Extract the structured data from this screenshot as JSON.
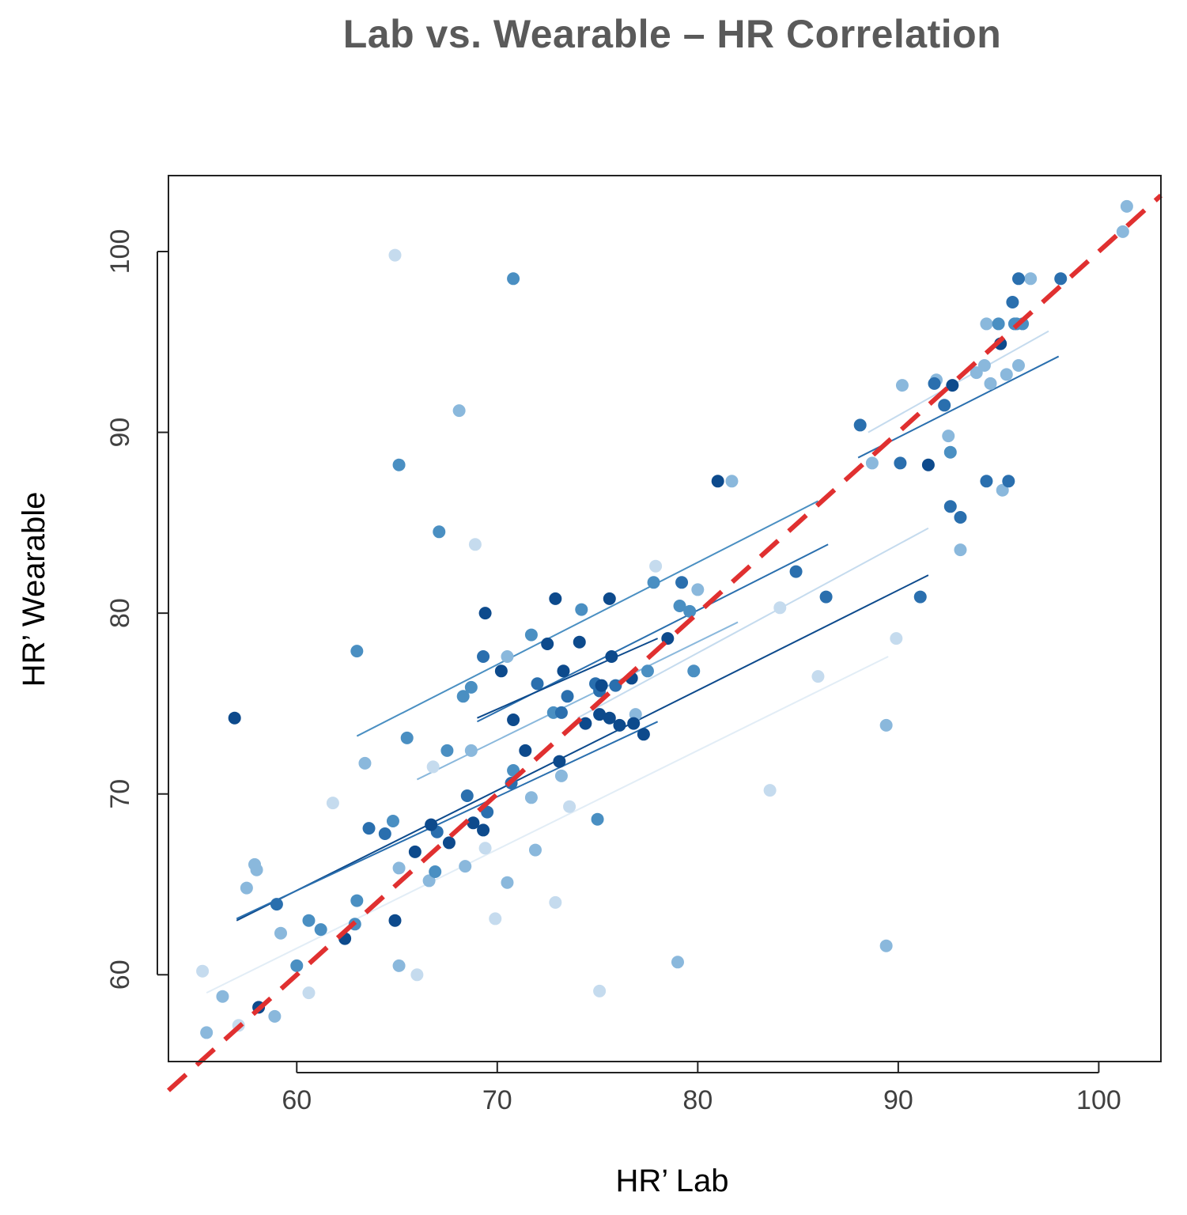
{
  "chart_data": {
    "type": "scatter",
    "title": "Lab vs. Wearable – HR Correlation",
    "xlabel": "HR’ Lab",
    "ylabel": "HR’ Wearable",
    "xlim": [
      53.6,
      103.1
    ],
    "ylim": [
      55.2,
      104.2
    ],
    "xticks": [
      60,
      70,
      80,
      90,
      100
    ],
    "yticks": [
      60,
      70,
      80,
      90,
      100
    ],
    "grid": false,
    "identity_line": {
      "name": "Identity (y = x)",
      "color": "#e03030",
      "style": "dashed",
      "x": [
        53.6,
        103.1
      ],
      "y": [
        53.6,
        103.1
      ]
    },
    "colors": {
      "c1": "#0d4a8c",
      "c2": "#2a6fae",
      "c3": "#4a8fc2",
      "c4": "#8ab8dc",
      "c5": "#c5dbee",
      "c6": "#e2edf6"
    },
    "fit_lines": [
      {
        "x": [
          57.0,
          91.5
        ],
        "y": [
          63.0,
          82.1
        ],
        "shade": "c1"
      },
      {
        "x": [
          57.0,
          78.0
        ],
        "y": [
          63.1,
          74.0
        ],
        "shade": "c2"
      },
      {
        "x": [
          69.0,
          86.5
        ],
        "y": [
          74.0,
          83.8
        ],
        "shade": "c2"
      },
      {
        "x": [
          69.0,
          78.0
        ],
        "y": [
          74.2,
          78.6
        ],
        "shade": "c1"
      },
      {
        "x": [
          63.0,
          86.0
        ],
        "y": [
          73.2,
          86.2
        ],
        "shade": "c3"
      },
      {
        "x": [
          66.0,
          82.0
        ],
        "y": [
          70.8,
          79.5
        ],
        "shade": "c4"
      },
      {
        "x": [
          74.0,
          91.5
        ],
        "y": [
          74.2,
          84.7
        ],
        "shade": "c5"
      },
      {
        "x": [
          55.5,
          89.5
        ],
        "y": [
          59.0,
          77.6
        ],
        "shade": "c6"
      },
      {
        "x": [
          88.0,
          98.0
        ],
        "y": [
          88.6,
          94.2
        ],
        "shade": "c2"
      },
      {
        "x": [
          88.5,
          97.5
        ],
        "y": [
          90.0,
          95.6
        ],
        "shade": "c5"
      }
    ],
    "series": [
      {
        "name": "c1",
        "points": [
          [
            56.9,
            74.2
          ],
          [
            58.1,
            58.2
          ],
          [
            62.4,
            62.0
          ],
          [
            64.9,
            63.0
          ],
          [
            65.9,
            66.8
          ],
          [
            67.6,
            67.3
          ],
          [
            68.8,
            68.4
          ],
          [
            69.3,
            68.0
          ],
          [
            69.4,
            80.0
          ],
          [
            70.8,
            74.1
          ],
          [
            71.4,
            72.4
          ],
          [
            72.5,
            78.3
          ],
          [
            72.9,
            80.8
          ],
          [
            73.1,
            71.8
          ],
          [
            73.3,
            76.8
          ],
          [
            74.1,
            78.4
          ],
          [
            74.4,
            73.9
          ],
          [
            75.1,
            74.4
          ],
          [
            75.2,
            76.0
          ],
          [
            75.6,
            80.8
          ],
          [
            75.7,
            77.6
          ],
          [
            75.6,
            74.2
          ],
          [
            76.1,
            73.8
          ],
          [
            76.7,
            76.4
          ],
          [
            76.8,
            73.9
          ],
          [
            77.3,
            73.3
          ],
          [
            81.0,
            87.3
          ],
          [
            91.5,
            88.2
          ],
          [
            92.7,
            92.6
          ],
          [
            95.1,
            94.9
          ],
          [
            78.5,
            78.6
          ],
          [
            70.2,
            76.8
          ],
          [
            66.7,
            68.3
          ]
        ]
      },
      {
        "name": "c2",
        "points": [
          [
            59.0,
            63.9
          ],
          [
            63.6,
            68.1
          ],
          [
            64.4,
            67.8
          ],
          [
            67.0,
            67.9
          ],
          [
            68.5,
            69.9
          ],
          [
            69.5,
            69.0
          ],
          [
            70.7,
            70.6
          ],
          [
            72.0,
            76.1
          ],
          [
            73.5,
            75.4
          ],
          [
            74.9,
            76.1
          ],
          [
            75.1,
            75.7
          ],
          [
            75.9,
            76.0
          ],
          [
            79.2,
            81.7
          ],
          [
            84.9,
            82.3
          ],
          [
            86.4,
            80.9
          ],
          [
            88.1,
            90.4
          ],
          [
            90.1,
            88.3
          ],
          [
            91.8,
            92.7
          ],
          [
            92.3,
            91.5
          ],
          [
            92.6,
            85.9
          ],
          [
            93.1,
            85.3
          ],
          [
            94.4,
            87.3
          ],
          [
            95.5,
            87.3
          ],
          [
            95.7,
            97.2
          ],
          [
            96.0,
            98.5
          ],
          [
            98.1,
            98.5
          ],
          [
            69.3,
            77.6
          ],
          [
            73.2,
            74.5
          ],
          [
            91.1,
            80.9
          ]
        ]
      },
      {
        "name": "c3",
        "points": [
          [
            63.0,
            77.9
          ],
          [
            65.1,
            88.2
          ],
          [
            65.5,
            73.1
          ],
          [
            67.1,
            84.5
          ],
          [
            70.8,
            98.5
          ],
          [
            71.7,
            78.8
          ],
          [
            68.7,
            75.9
          ],
          [
            68.3,
            75.4
          ],
          [
            74.2,
            80.2
          ],
          [
            77.8,
            81.7
          ],
          [
            79.1,
            80.4
          ],
          [
            79.6,
            80.1
          ],
          [
            79.8,
            76.8
          ],
          [
            95.0,
            96.0
          ],
          [
            95.8,
            96.0
          ],
          [
            95.9,
            96.0
          ],
          [
            96.2,
            96.0
          ],
          [
            63.0,
            64.1
          ],
          [
            62.9,
            62.8
          ],
          [
            60.0,
            60.5
          ],
          [
            60.6,
            63.0
          ],
          [
            61.2,
            62.5
          ],
          [
            64.8,
            68.5
          ],
          [
            66.9,
            65.7
          ],
          [
            75.0,
            68.6
          ],
          [
            70.8,
            71.3
          ],
          [
            72.8,
            74.5
          ],
          [
            77.5,
            76.8
          ],
          [
            92.6,
            88.9
          ],
          [
            67.5,
            72.4
          ]
        ]
      },
      {
        "name": "c4",
        "points": [
          [
            57.5,
            64.8
          ],
          [
            58.0,
            65.8
          ],
          [
            59.2,
            62.3
          ],
          [
            63.4,
            71.7
          ],
          [
            65.1,
            65.9
          ],
          [
            66.6,
            65.2
          ],
          [
            68.4,
            66.0
          ],
          [
            68.7,
            72.4
          ],
          [
            70.5,
            77.6
          ],
          [
            70.5,
            65.1
          ],
          [
            71.7,
            69.8
          ],
          [
            71.9,
            66.9
          ],
          [
            73.2,
            71.0
          ],
          [
            76.9,
            74.4
          ],
          [
            80.0,
            81.3
          ],
          [
            81.7,
            87.3
          ],
          [
            88.7,
            88.3
          ],
          [
            90.2,
            92.6
          ],
          [
            91.9,
            92.9
          ],
          [
            92.5,
            89.8
          ],
          [
            93.1,
            83.5
          ],
          [
            93.9,
            93.3
          ],
          [
            94.3,
            93.7
          ],
          [
            94.6,
            92.7
          ],
          [
            95.2,
            86.8
          ],
          [
            95.4,
            93.2
          ],
          [
            96.6,
            98.5
          ],
          [
            96.0,
            93.7
          ],
          [
            101.2,
            101.1
          ],
          [
            101.4,
            102.5
          ],
          [
            94.4,
            96.0
          ],
          [
            68.1,
            91.2
          ],
          [
            89.4,
            73.8
          ],
          [
            89.4,
            61.6
          ],
          [
            79.0,
            60.7
          ],
          [
            65.1,
            60.5
          ],
          [
            58.9,
            57.7
          ],
          [
            56.3,
            58.8
          ],
          [
            55.5,
            56.8
          ],
          [
            57.9,
            66.1
          ]
        ]
      },
      {
        "name": "c5",
        "points": [
          [
            55.3,
            60.2
          ],
          [
            57.1,
            57.2
          ],
          [
            60.6,
            59.0
          ],
          [
            64.9,
            99.8
          ],
          [
            66.0,
            60.0
          ],
          [
            69.4,
            67.0
          ],
          [
            69.9,
            63.1
          ],
          [
            72.9,
            64.0
          ],
          [
            75.1,
            59.1
          ],
          [
            77.9,
            82.6
          ],
          [
            83.6,
            70.2
          ],
          [
            86.0,
            76.5
          ],
          [
            89.9,
            78.6
          ],
          [
            68.9,
            83.8
          ],
          [
            61.8,
            69.5
          ],
          [
            73.6,
            69.3
          ],
          [
            84.1,
            80.3
          ],
          [
            66.8,
            71.5
          ]
        ]
      }
    ]
  }
}
